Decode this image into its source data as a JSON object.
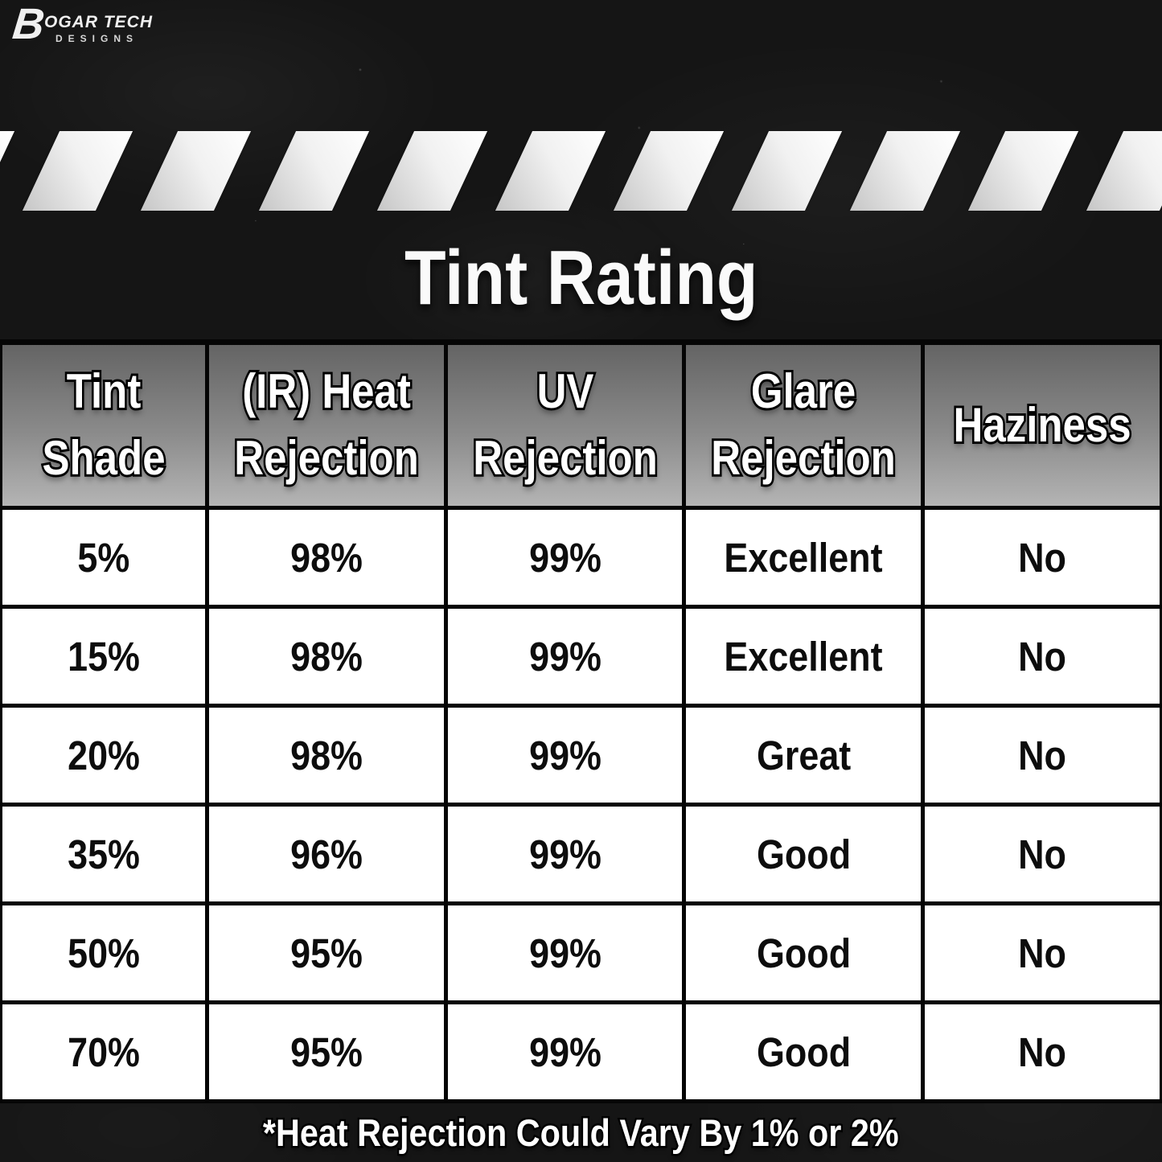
{
  "brand": {
    "mark": "B",
    "name": "OGAR TECH",
    "subtitle": "DESIGNS"
  },
  "title": "Tint Rating",
  "stripes": {
    "count": 12
  },
  "colors": {
    "background": "#151515",
    "stripe_light": "#ffffff",
    "stripe_dark": "#c6c6c6",
    "header_gradient_top": "#646464",
    "header_gradient_bottom": "#b4b4b4",
    "table_border": "#050505",
    "cell_background": "#ffffff",
    "cell_text": "#0d0d0d",
    "light_text": "#ffffff"
  },
  "chart_data": {
    "type": "table",
    "title": "Tint Rating",
    "columns": [
      "Tint\nShade",
      "(IR) Heat\nRejection",
      "UV\nRejection",
      "Glare\nRejection",
      "Haziness"
    ],
    "rows": [
      [
        "5%",
        "98%",
        "99%",
        "Excellent",
        "No"
      ],
      [
        "15%",
        "98%",
        "99%",
        "Excellent",
        "No"
      ],
      [
        "20%",
        "98%",
        "99%",
        "Great",
        "No"
      ],
      [
        "35%",
        "96%",
        "99%",
        "Good",
        "No"
      ],
      [
        "50%",
        "95%",
        "99%",
        "Good",
        "No"
      ],
      [
        "70%",
        "95%",
        "99%",
        "Good",
        "No"
      ]
    ],
    "footnote": "*Heat Rejection Could Vary By 1% or 2%"
  }
}
